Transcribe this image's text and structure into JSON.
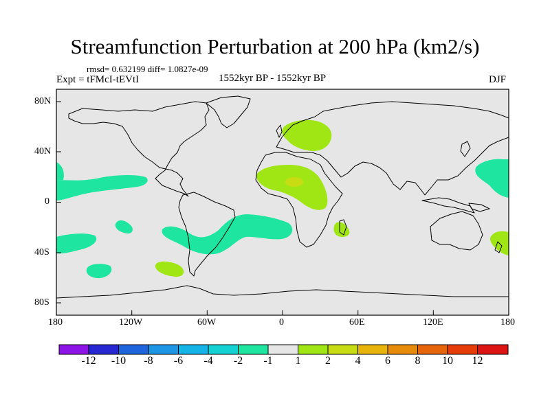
{
  "title": "Streamfunction Perturbation at 200 hPa (km2/s)",
  "stats": "rmsd= 0.632199 diff= 1.0827e-09",
  "experiment": "Expt = tFMcI-tEVtI",
  "period": "1552kyr BP - 1552kyr BP",
  "season": "DJF",
  "map": {
    "projection": "cylindrical-equidistant",
    "lon_range": [
      -180,
      180
    ],
    "lat_range": [
      -90,
      90
    ],
    "background_color": "#e6e6e6",
    "lon_ticks": [
      "180",
      "120W",
      "60W",
      "0",
      "60E",
      "120E",
      "180"
    ],
    "lat_ticks": [
      "80N",
      "40N",
      "0",
      "40S",
      "80S"
    ]
  },
  "colorbar": {
    "labels": [
      "-12",
      "-10",
      "-8",
      "-6",
      "-4",
      "-2",
      "-1",
      "1",
      "2",
      "4",
      "6",
      "8",
      "10",
      "12"
    ],
    "colors": [
      "#8c14e6",
      "#2828d2",
      "#1e64dc",
      "#1e96e6",
      "#14b4e6",
      "#14d2d2",
      "#1ee6a0",
      "#e6e6e6",
      "#a0e614",
      "#c8dc14",
      "#e6b40a",
      "#e68c0a",
      "#e6640a",
      "#e63c0a",
      "#dc1414"
    ]
  },
  "anomaly_regions": [
    {
      "name": "north-pacific-east",
      "level": "-2 to -1",
      "color": "#1ee6a0",
      "lon": -140,
      "lat": 15
    },
    {
      "name": "south-pacific-west",
      "level": "-2 to -1",
      "color": "#1ee6a0",
      "lon": -160,
      "lat": -32
    },
    {
      "name": "south-pacific-small",
      "level": "-2 to -1",
      "color": "#1ee6a0",
      "lon": -130,
      "lat": -18
    },
    {
      "name": "south-pacific-south",
      "level": "-2 to -1",
      "color": "#1ee6a0",
      "lon": -145,
      "lat": -55
    },
    {
      "name": "south-atlantic-band",
      "level": "-2 to -1",
      "color": "#1ee6a0",
      "lon": -40,
      "lat": -23
    },
    {
      "name": "south-america-south",
      "level": "1 to 2",
      "color": "#a0e614",
      "lon": -95,
      "lat": -47
    },
    {
      "name": "europe",
      "level": "1 to 2",
      "color": "#a0e614",
      "lon": 20,
      "lat": 55
    },
    {
      "name": "north-africa",
      "level": "1 to 2",
      "color": "#a0e614",
      "lon": 15,
      "lat": 20
    },
    {
      "name": "west-africa-peak",
      "level": "2 to 4",
      "color": "#c8dc14",
      "lon": 10,
      "lat": 15
    },
    {
      "name": "madagascar",
      "level": "1 to 2",
      "color": "#a0e614",
      "lon": 47,
      "lat": -20
    },
    {
      "name": "west-pacific-north",
      "level": "-2 to -1",
      "color": "#1ee6a0",
      "lon": 165,
      "lat": 25
    },
    {
      "name": "new-zealand",
      "level": "1 to 2",
      "color": "#a0e614",
      "lon": 172,
      "lat": -31
    }
  ]
}
